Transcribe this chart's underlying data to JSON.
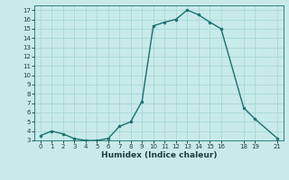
{
  "x": [
    0,
    1,
    2,
    3,
    4,
    5,
    6,
    7,
    8,
    9,
    10,
    11,
    12,
    13,
    14,
    15,
    16,
    18,
    19,
    21
  ],
  "y": [
    3.5,
    4.0,
    3.7,
    3.2,
    3.0,
    3.0,
    3.2,
    4.5,
    5.0,
    7.2,
    15.3,
    15.7,
    16.0,
    17.0,
    16.5,
    15.7,
    15.0,
    6.5,
    5.3,
    3.2
  ],
  "line_color": "#1a7070",
  "marker_color": "#1a7070",
  "bg_color": "#c8eaea",
  "grid_color": "#a8d8d8",
  "xlabel": "Humidex (Indice chaleur)",
  "xlim": [
    -0.5,
    21.5
  ],
  "ylim": [
    3,
    17.5
  ],
  "yticks": [
    3,
    4,
    5,
    6,
    7,
    8,
    9,
    10,
    11,
    12,
    13,
    14,
    15,
    16,
    17
  ],
  "xticks": [
    0,
    1,
    2,
    3,
    4,
    5,
    6,
    7,
    8,
    9,
    10,
    11,
    12,
    13,
    14,
    15,
    16,
    18,
    19,
    21
  ]
}
